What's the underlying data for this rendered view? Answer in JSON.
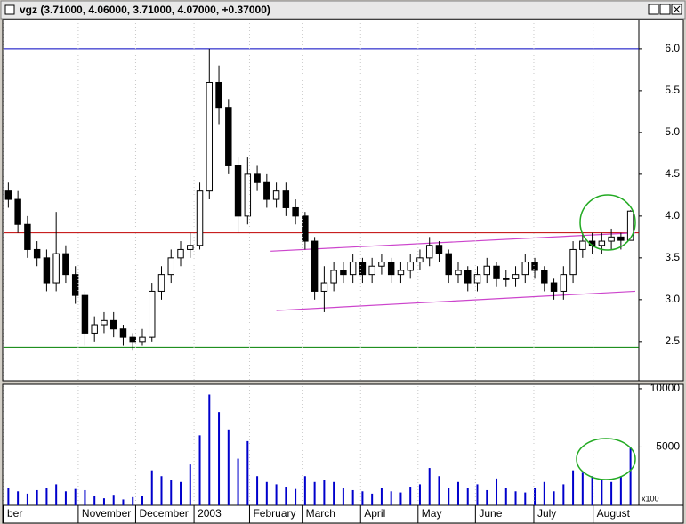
{
  "window": {
    "title": "vgz (3.71000, 4.06000, 3.71000, 4.07000, +0.37000)"
  },
  "chart_data": [
    {
      "type": "candlestick",
      "open": [
        4.3,
        4.2,
        3.9,
        3.6,
        3.5,
        3.2,
        3.55,
        3.3,
        3.05,
        2.6,
        2.7,
        2.75,
        2.65,
        2.55,
        2.5,
        2.55,
        3.1,
        3.3,
        3.5,
        3.6,
        3.65,
        4.3,
        5.6,
        5.3,
        4.6,
        4.0,
        4.5,
        4.4,
        4.2,
        4.3,
        4.1,
        4.0,
        3.7,
        3.1,
        3.2,
        3.35,
        3.3,
        3.45,
        3.3,
        3.4,
        3.45,
        3.3,
        3.35,
        3.45,
        3.5,
        3.65,
        3.55,
        3.3,
        3.35,
        3.2,
        3.3,
        3.4,
        3.25,
        3.25,
        3.3,
        3.45,
        3.35,
        3.2,
        3.1,
        3.3,
        3.6,
        3.7,
        3.65,
        3.7,
        3.75,
        3.71
      ],
      "high": [
        4.4,
        4.3,
        4.0,
        3.7,
        3.6,
        4.05,
        3.65,
        3.4,
        3.1,
        2.8,
        2.85,
        2.85,
        2.7,
        2.6,
        2.65,
        3.2,
        3.4,
        3.6,
        3.7,
        3.8,
        4.4,
        6.0,
        5.8,
        5.4,
        4.7,
        4.7,
        4.6,
        4.5,
        4.4,
        4.4,
        4.2,
        4.05,
        3.75,
        3.4,
        3.45,
        3.45,
        3.55,
        3.5,
        3.5,
        3.55,
        3.5,
        3.45,
        3.55,
        3.6,
        3.75,
        3.7,
        3.6,
        3.45,
        3.4,
        3.4,
        3.5,
        3.45,
        3.35,
        3.4,
        3.55,
        3.5,
        3.4,
        3.25,
        3.4,
        3.7,
        3.8,
        3.8,
        3.8,
        3.85,
        3.8,
        4.07
      ],
      "low": [
        4.1,
        3.8,
        3.5,
        3.4,
        3.1,
        3.1,
        3.2,
        2.95,
        2.45,
        2.5,
        2.6,
        2.55,
        2.45,
        2.4,
        2.45,
        2.5,
        3.0,
        3.2,
        3.4,
        3.5,
        3.6,
        4.2,
        5.1,
        4.5,
        3.8,
        3.9,
        4.3,
        4.1,
        4.1,
        4.0,
        3.9,
        3.6,
        3.0,
        2.85,
        3.1,
        3.2,
        3.2,
        3.2,
        3.2,
        3.3,
        3.2,
        3.2,
        3.25,
        3.35,
        3.4,
        3.45,
        3.2,
        3.2,
        3.1,
        3.1,
        3.2,
        3.15,
        3.15,
        3.15,
        3.2,
        3.25,
        3.1,
        3.0,
        3.0,
        3.2,
        3.5,
        3.55,
        3.55,
        3.6,
        3.6,
        3.71
      ],
      "close": [
        4.2,
        3.9,
        3.6,
        3.5,
        3.2,
        3.55,
        3.3,
        3.05,
        2.6,
        2.7,
        2.75,
        2.65,
        2.55,
        2.5,
        2.55,
        3.1,
        3.3,
        3.5,
        3.6,
        3.65,
        4.3,
        5.6,
        5.3,
        4.6,
        4.0,
        4.5,
        4.4,
        4.2,
        4.3,
        4.1,
        4.0,
        3.7,
        3.1,
        3.2,
        3.35,
        3.3,
        3.45,
        3.3,
        3.4,
        3.45,
        3.3,
        3.35,
        3.45,
        3.5,
        3.65,
        3.55,
        3.3,
        3.35,
        3.2,
        3.3,
        3.4,
        3.25,
        3.25,
        3.3,
        3.45,
        3.35,
        3.2,
        3.1,
        3.3,
        3.6,
        3.7,
        3.65,
        3.7,
        3.75,
        3.71,
        4.06
      ],
      "ylim": [
        2.03,
        6.35
      ],
      "yticks": [
        2.5,
        {
          "value": 3.0,
          "label": "3.0"
        },
        3.5,
        {
          "value": 4.0,
          "label": "4.0"
        },
        4.5,
        {
          "value": 5.0,
          "label": "5.0"
        },
        5.5,
        {
          "value": 6.0,
          "label": "6.0"
        }
      ],
      "hlines": [
        {
          "value": 6.0,
          "color": "#0000c0"
        },
        {
          "value": 3.8,
          "color": "#c00000"
        },
        {
          "value": 2.43,
          "color": "#008000"
        }
      ],
      "trendlines": [
        {
          "x": [
            27.4,
            65.5
          ],
          "y": [
            3.58,
            3.8
          ],
          "color": "#cc44cc"
        },
        {
          "x": [
            28.0,
            65.5
          ],
          "y": [
            2.87,
            3.1
          ],
          "color": "#cc44cc"
        }
      ]
    },
    {
      "type": "bar",
      "values": [
        1500,
        1200,
        1000,
        1300,
        1500,
        1800,
        1200,
        1400,
        1300,
        800,
        600,
        900,
        500,
        700,
        800,
        3000,
        2500,
        2200,
        2000,
        3500,
        6000,
        9500,
        8000,
        6500,
        4000,
        5500,
        2500,
        2000,
        1800,
        1600,
        1400,
        2500,
        2000,
        2200,
        2000,
        1500,
        1300,
        1200,
        1000,
        1500,
        1200,
        1100,
        1600,
        1800,
        3200,
        2500,
        1500,
        2000,
        1500,
        1800,
        1300,
        2300,
        1500,
        1200,
        1100,
        1500,
        2000,
        1200,
        1800,
        3000,
        2800,
        2500,
        2200,
        2000,
        2500,
        5000
      ],
      "color": "#0000cc",
      "ylim": [
        0,
        10300
      ],
      "yticks": [
        5000,
        10000
      ],
      "scale_note": "x100",
      "xticks": [
        {
          "value": -0.5,
          "label": "ber"
        },
        {
          "value": 7.3,
          "label": "November"
        },
        {
          "value": 13.3,
          "label": "December"
        },
        {
          "value": 19.4,
          "label": "2003"
        },
        {
          "value": 25.2,
          "label": "February"
        },
        {
          "value": 30.7,
          "label": "March"
        },
        {
          "value": 36.8,
          "label": "April"
        },
        {
          "value": 42.8,
          "label": "May"
        },
        {
          "value": 48.8,
          "label": "June"
        },
        {
          "value": 54.9,
          "label": "July"
        },
        {
          "value": 61.1,
          "label": "August"
        }
      ]
    }
  ]
}
